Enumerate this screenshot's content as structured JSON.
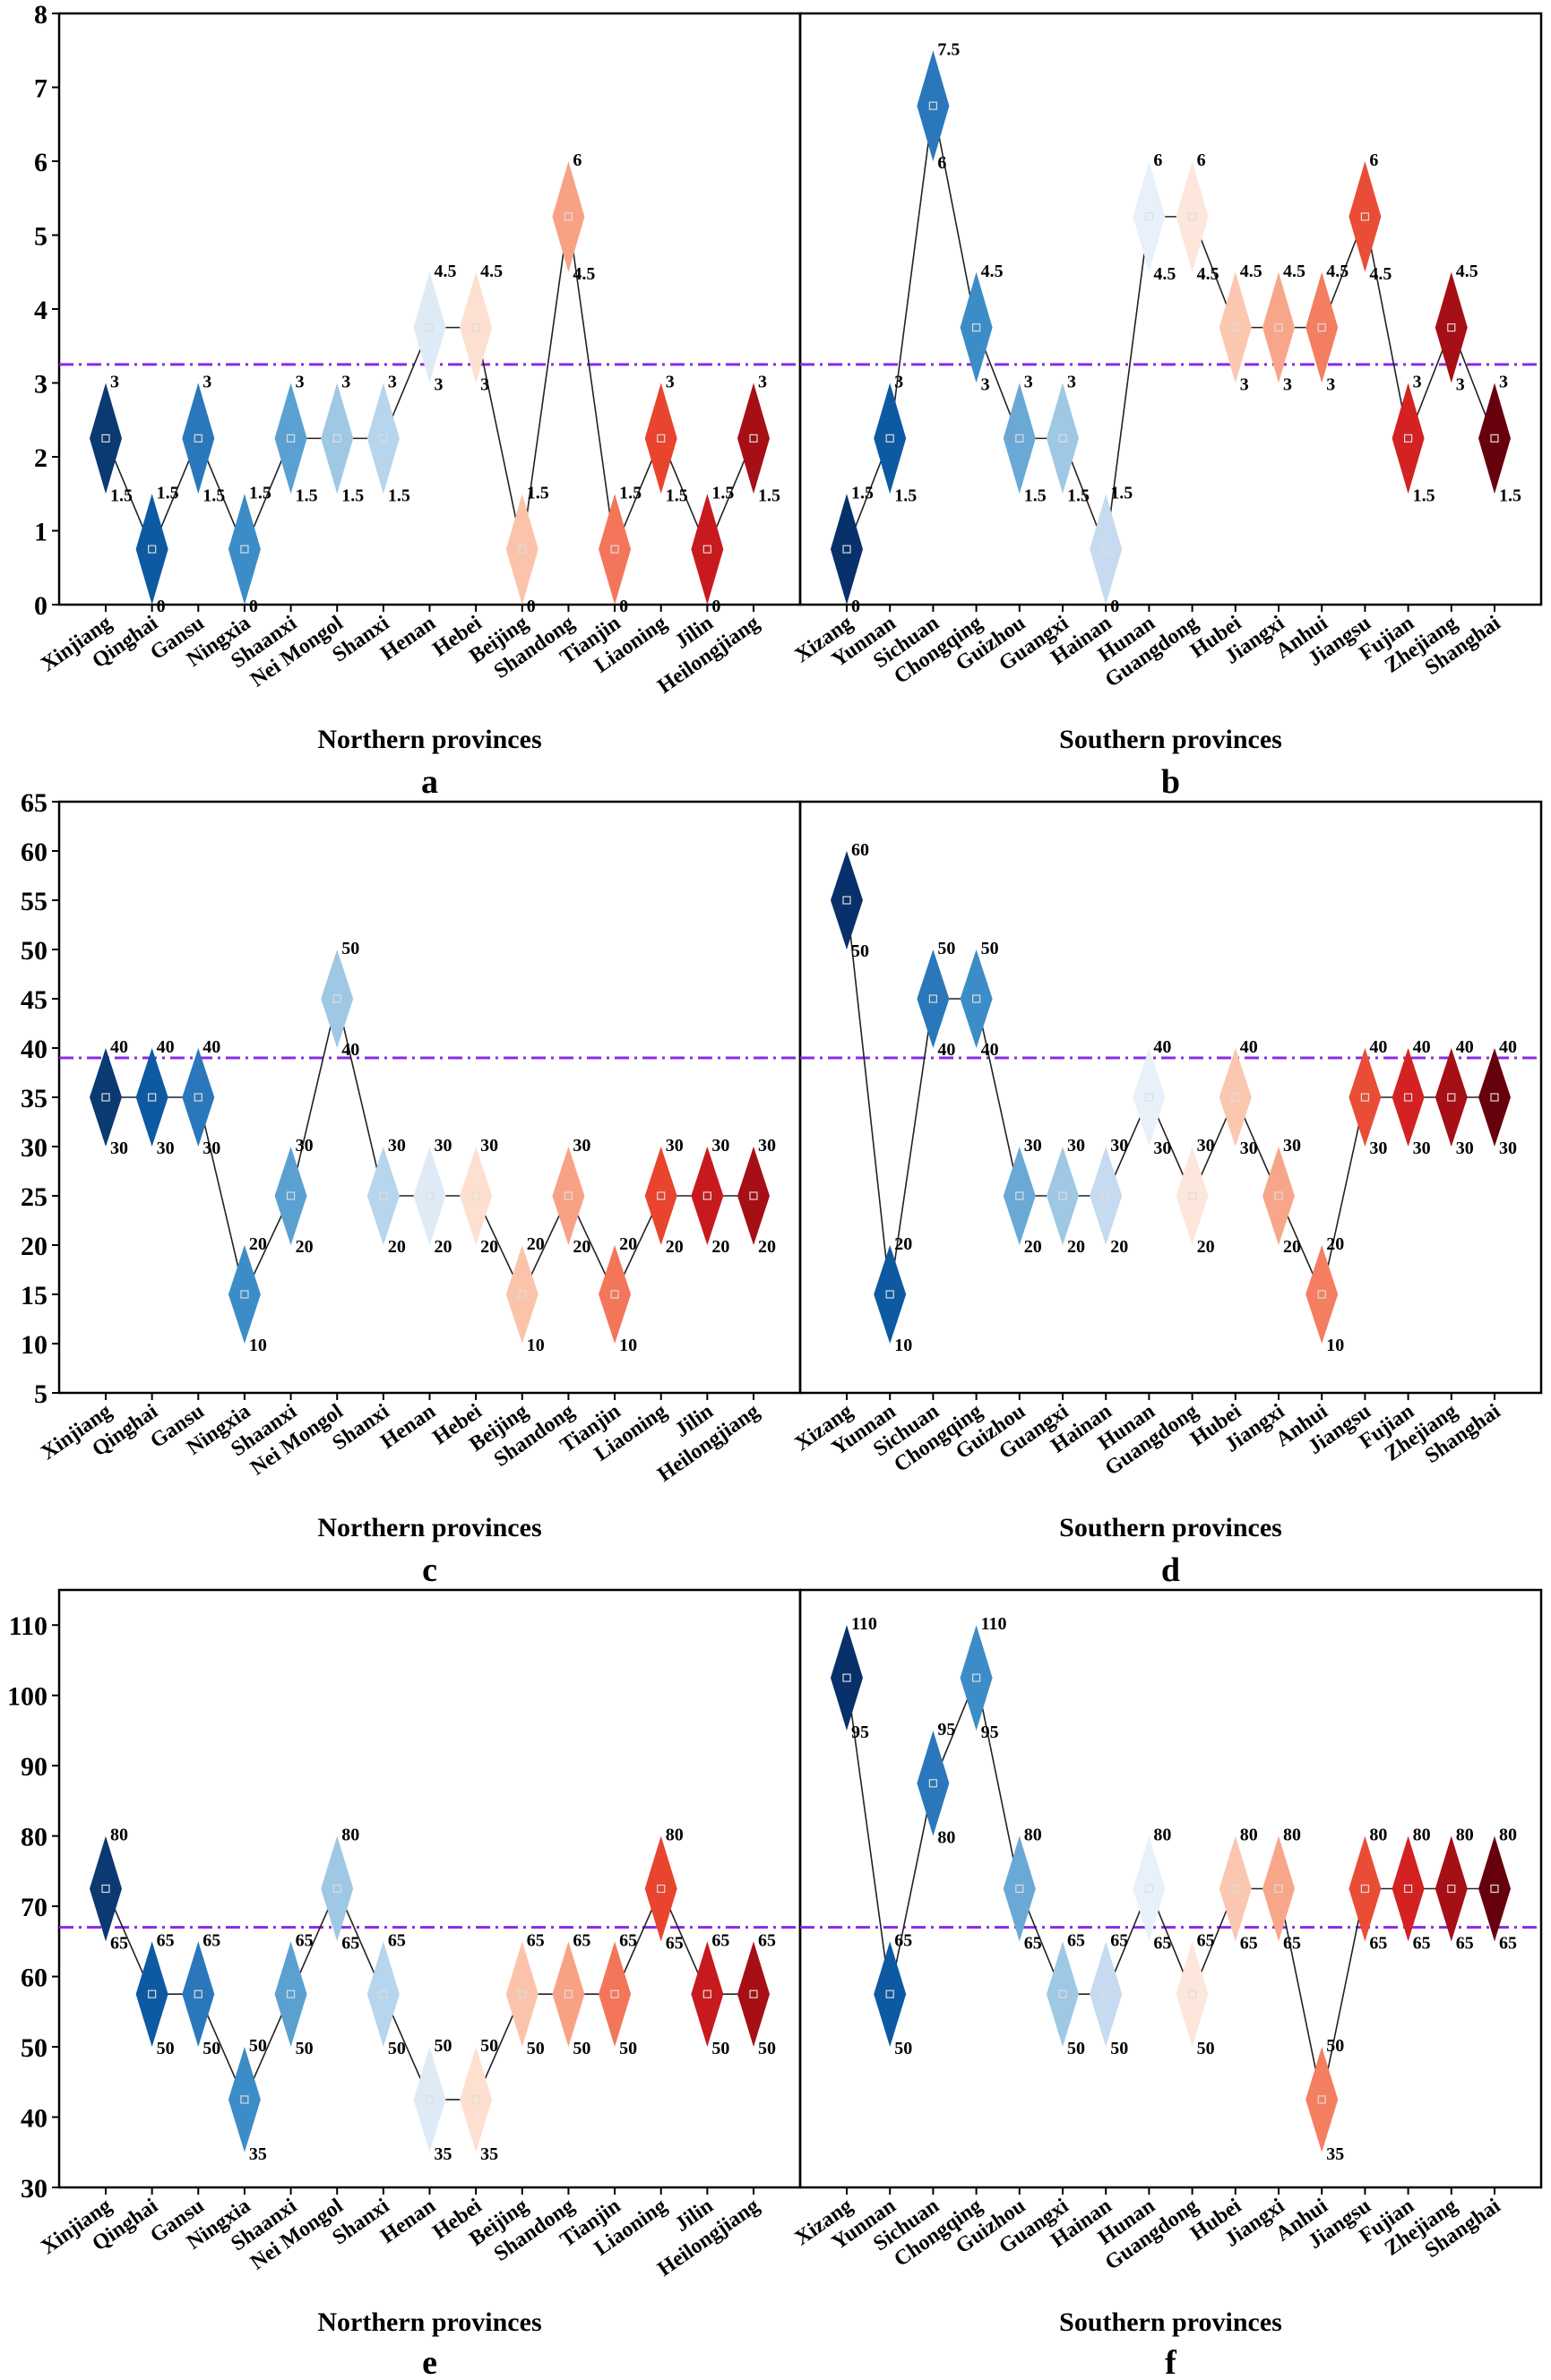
{
  "figure": {
    "north_categories": [
      "Xinjiang",
      "Qinghai",
      "Gansu",
      "Ningxia",
      "Shaanxi",
      "Nei Mongol",
      "Shanxi",
      "Henan",
      "Hebei",
      "Beijing",
      "Shandong",
      "Tianjin",
      "Liaoning",
      "Jilin",
      "Heilongjiang"
    ],
    "south_categories": [
      "Xizang",
      "Yunnan",
      "Sichuan",
      "Chongqing",
      "Guizhou",
      "Guangxi",
      "Hainan",
      "Hunan",
      "Guangdong",
      "Hubei",
      "Jiangxi",
      "Anhui",
      "Jiangsu",
      "Fujian",
      "Zhejiang",
      "Shanghai"
    ],
    "north_colors": [
      "#0b3a73",
      "#0d5aa3",
      "#2a78bb",
      "#3c8dc7",
      "#5aa1d2",
      "#9fc8e4",
      "#b7d5ec",
      "#deebf7",
      "#fde0cf",
      "#fbc4aa",
      "#f8a285",
      "#f4765a",
      "#e8442e",
      "#c81a1e",
      "#a50f15"
    ],
    "south_colors": [
      "#08306b",
      "#0d5aa3",
      "#2a78bb",
      "#3c8dc7",
      "#6aa9d6",
      "#9fc8e4",
      "#c6dbef",
      "#e8f1fa",
      "#fde7dc",
      "#fbc7b0",
      "#f8a68a",
      "#f47e60",
      "#ea4d35",
      "#d42121",
      "#a50f15",
      "#67000d"
    ],
    "mean_line_color": "#8a2be2"
  },
  "chart_data": [
    {
      "panel_label": "a",
      "type": "diamond_range",
      "group": "north",
      "xlabel": "Northern provinces",
      "ylim": [
        0,
        8
      ],
      "yticks": [
        0,
        1,
        2,
        3,
        4,
        5,
        6,
        7,
        8
      ],
      "mean_line": 3.25,
      "low": [
        1.5,
        0,
        1.5,
        0,
        1.5,
        1.5,
        1.5,
        3,
        3,
        0,
        4.5,
        0,
        1.5,
        0,
        1.5
      ],
      "high": [
        3,
        1.5,
        3,
        1.5,
        3,
        3,
        3,
        4.5,
        4.5,
        1.5,
        6,
        1.5,
        3,
        1.5,
        3
      ],
      "low_labels": [
        "1.5",
        "0",
        "1.5",
        "0",
        "1.5",
        "1.5",
        "1.5",
        "3",
        "3",
        "0",
        "4.5",
        "0",
        "1.5",
        "0",
        "1.5"
      ],
      "high_labels": [
        "3",
        "1.5",
        "3",
        "1.5",
        "3",
        "3",
        "3",
        "4.5",
        "4.5",
        "1.5",
        "6",
        "1.5",
        "3",
        "1.5",
        "3"
      ]
    },
    {
      "panel_label": "b",
      "type": "diamond_range",
      "group": "south",
      "xlabel": "Southern provinces",
      "ylim": [
        0,
        8
      ],
      "yticks": [
        0,
        1,
        2,
        3,
        4,
        5,
        6,
        7,
        8
      ],
      "mean_line": 3.25,
      "low": [
        0,
        1.5,
        6,
        3,
        1.5,
        1.5,
        0,
        4.5,
        4.5,
        3,
        3,
        3,
        4.5,
        1.5,
        3,
        1.5
      ],
      "high": [
        1.5,
        3,
        7.5,
        4.5,
        3,
        3,
        1.5,
        6,
        6,
        4.5,
        4.5,
        4.5,
        6,
        3,
        4.5,
        3
      ],
      "low_labels": [
        "0",
        "1.5",
        "6",
        "3",
        "1.5",
        "1.5",
        "0",
        "4.5",
        "4.5",
        "3",
        "3",
        "3",
        "4.5",
        "1.5",
        "3",
        "1.5"
      ],
      "high_labels": [
        "1.5",
        "3",
        "7.5",
        "4.5",
        "3",
        "3",
        "1.5",
        "6",
        "6",
        "4.5",
        "4.5",
        "4.5",
        "6",
        "3",
        "4.5",
        "3"
      ]
    },
    {
      "panel_label": "c",
      "type": "diamond_range",
      "group": "north",
      "xlabel": "Northern provinces",
      "ylim": [
        5,
        65
      ],
      "yticks": [
        5,
        10,
        15,
        20,
        25,
        30,
        35,
        40,
        45,
        50,
        55,
        60,
        65
      ],
      "mean_line": 39,
      "low": [
        30,
        30,
        30,
        10,
        20,
        40,
        20,
        20,
        20,
        10,
        20,
        10,
        20,
        20,
        20
      ],
      "high": [
        40,
        40,
        40,
        20,
        30,
        50,
        30,
        30,
        30,
        20,
        30,
        20,
        30,
        30,
        30
      ],
      "low_labels": [
        "30",
        "30",
        "30",
        "10",
        "20",
        "40",
        "20",
        "20",
        "20",
        "10",
        "20",
        "10",
        "20",
        "20",
        "20"
      ],
      "high_labels": [
        "40",
        "40",
        "40",
        "20",
        "30",
        "50",
        "30",
        "30",
        "30",
        "20",
        "30",
        "20",
        "30",
        "30",
        "30"
      ]
    },
    {
      "panel_label": "d",
      "type": "diamond_range",
      "group": "south",
      "xlabel": "Southern provinces",
      "ylim": [
        5,
        65
      ],
      "yticks": [
        5,
        10,
        15,
        20,
        25,
        30,
        35,
        40,
        45,
        50,
        55,
        60,
        65
      ],
      "mean_line": 39,
      "low": [
        50,
        10,
        40,
        40,
        20,
        20,
        20,
        30,
        20,
        30,
        20,
        10,
        30,
        30,
        30,
        30
      ],
      "high": [
        60,
        20,
        50,
        50,
        30,
        30,
        30,
        40,
        30,
        40,
        30,
        20,
        40,
        40,
        40,
        40
      ],
      "low_labels": [
        "50",
        "10",
        "40",
        "40",
        "20",
        "20",
        "20",
        "30",
        "20",
        "30",
        "20",
        "10",
        "30",
        "30",
        "30",
        "30"
      ],
      "high_labels": [
        "60",
        "20",
        "50",
        "50",
        "30",
        "30",
        "30",
        "40",
        "30",
        "40",
        "30",
        "20",
        "40",
        "40",
        "40",
        "40"
      ]
    },
    {
      "panel_label": "e",
      "type": "diamond_range",
      "group": "north",
      "xlabel": "Northern provinces",
      "ylim": [
        30,
        115
      ],
      "yticks": [
        30,
        40,
        50,
        60,
        70,
        80,
        90,
        100,
        110
      ],
      "mean_line": 67,
      "low": [
        65,
        50,
        50,
        35,
        50,
        65,
        50,
        35,
        35,
        50,
        50,
        50,
        65,
        50,
        50
      ],
      "high": [
        80,
        65,
        65,
        50,
        65,
        80,
        65,
        50,
        50,
        65,
        65,
        65,
        80,
        65,
        65
      ],
      "low_labels": [
        "65",
        "50",
        "50",
        "35",
        "50",
        "65",
        "50",
        "35",
        "35",
        "50",
        "50",
        "50",
        "65",
        "50",
        "50"
      ],
      "high_labels": [
        "80",
        "65",
        "65",
        "50",
        "65",
        "80",
        "65",
        "50",
        "50",
        "65",
        "65",
        "65",
        "80",
        "65",
        "65"
      ]
    },
    {
      "panel_label": "f",
      "type": "diamond_range",
      "group": "south",
      "xlabel": "Southern provinces",
      "ylim": [
        30,
        115
      ],
      "yticks": [
        30,
        40,
        50,
        60,
        70,
        80,
        90,
        100,
        110
      ],
      "mean_line": 67,
      "low": [
        95,
        50,
        80,
        95,
        65,
        50,
        50,
        65,
        50,
        65,
        65,
        35,
        65,
        65,
        65,
        65
      ],
      "high": [
        110,
        65,
        95,
        110,
        80,
        65,
        65,
        80,
        65,
        80,
        80,
        50,
        80,
        80,
        80,
        80
      ],
      "low_labels": [
        "95",
        "50",
        "80",
        "95",
        "65",
        "50",
        "50",
        "65",
        "50",
        "65",
        "65",
        "35",
        "65",
        "65",
        "65",
        "65"
      ],
      "high_labels": [
        "110",
        "65",
        "95",
        "110",
        "80",
        "65",
        "65",
        "80",
        "65",
        "80",
        "80",
        "50",
        "80",
        "80",
        "80",
        "80"
      ]
    }
  ]
}
